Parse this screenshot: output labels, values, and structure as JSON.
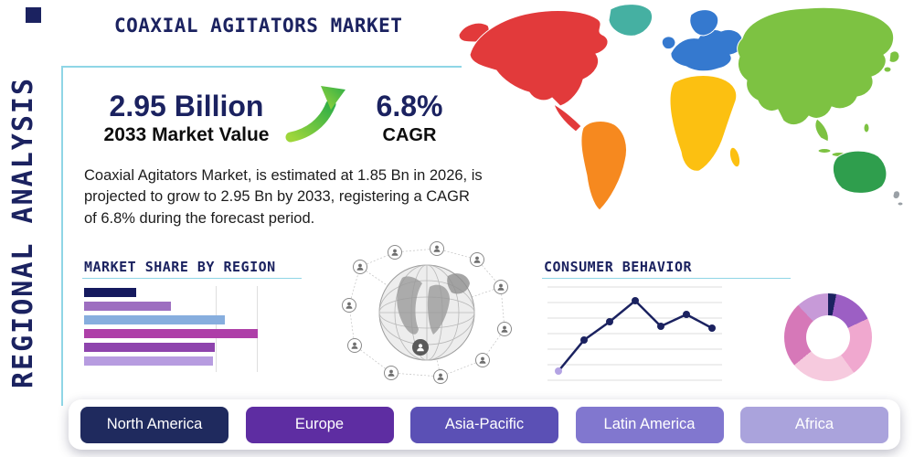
{
  "page": {
    "side_label": "REGIONAL ANALYSIS",
    "title": "COAXIAL AGITATORS MARKET",
    "navy": "#1b2260",
    "accent_color": "#8fd6e6"
  },
  "stats": {
    "market_value": "2.95 Billion",
    "market_value_label": "2033 Market Value",
    "cagr_value": "6.8%",
    "cagr_label": "CAGR",
    "growth_arrow_icon": "green-up-right-arrow",
    "description": "Coaxial Agitators Market, is estimated at 1.85 Bn in 2026, is projected to grow to 2.95 Bn by 2033, registering a CAGR of 6.8% during the forecast period."
  },
  "region_buttons": [
    {
      "label": "North America",
      "color": "#1f2a5e"
    },
    {
      "label": "Europe",
      "color": "#5e2da2"
    },
    {
      "label": "Asia-Pacific",
      "color": "#5b50b5"
    },
    {
      "label": "Latin America",
      "color": "#8177cf"
    },
    {
      "label": "Africa",
      "color": "#aaa3dc"
    }
  ],
  "map": {
    "regions": [
      {
        "id": "north-america",
        "color": "#e23a3b"
      },
      {
        "id": "greenland",
        "color": "#45b0a2"
      },
      {
        "id": "south-america",
        "color": "#f6891f"
      },
      {
        "id": "europe",
        "color": "#3579cf"
      },
      {
        "id": "africa",
        "color": "#fcc011"
      },
      {
        "id": "asia",
        "color": "#7dc242"
      },
      {
        "id": "australia",
        "color": "#2f9e4d"
      },
      {
        "id": "new-zealand",
        "color": "#9aa0a6"
      }
    ]
  },
  "chart_data": [
    {
      "id": "market-share-by-region",
      "type": "bar",
      "orientation": "horizontal",
      "title": "MARKET SHARE BY REGION",
      "categories": [
        "region-1",
        "region-2",
        "region-3",
        "region-4",
        "region-5",
        "region-6"
      ],
      "values": [
        30,
        50,
        81,
        100,
        75,
        74
      ],
      "value_scale": "relative, max = 100 (no numeric axis labels shown)",
      "colors": [
        "#151a5e",
        "#9d6ec0",
        "#87aede",
        "#ae3fa8",
        "#8e44ad",
        "#b79ce0"
      ],
      "xlabel": "",
      "ylabel": "",
      "tick_labels_visible": false,
      "grid": "two faint vertical gridlines"
    },
    {
      "id": "consumer-behavior",
      "type": "line",
      "title": "CONSUMER BEHAVIOR",
      "x": [
        1,
        2,
        3,
        4,
        5,
        6,
        7
      ],
      "values": [
        8,
        42,
        62,
        85,
        57,
        70,
        55
      ],
      "value_scale": "relative, 0-100 (no numeric axis labels shown)",
      "line_color": "#1b2260",
      "marker": "circle",
      "first_marker_color": "#b3a3e3",
      "grid": true,
      "tick_labels_visible": false
    },
    {
      "id": "regional-distribution-donut",
      "type": "pie",
      "donut": true,
      "values": [
        3,
        15,
        22,
        24,
        24,
        12
      ],
      "value_scale": "percent (no labels shown)",
      "colors": [
        "#1b2260",
        "#9c5fc4",
        "#f0a8cf",
        "#f6cade",
        "#d678b8",
        "#c79ad8"
      ],
      "labels_visible": false,
      "legend": "none"
    }
  ]
}
